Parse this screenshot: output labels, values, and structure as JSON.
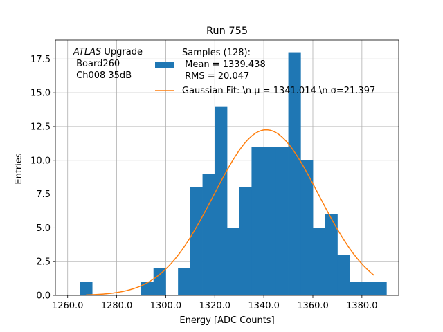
{
  "chart_data": {
    "type": "bar",
    "title": "Run 755",
    "xlabel": "Energy [ADC Counts]",
    "ylabel": "Entries",
    "xlim": [
      1255,
      1395
    ],
    "ylim": [
      0,
      18.9
    ],
    "xticks": [
      1260,
      1280,
      1300,
      1320,
      1340,
      1360,
      1380
    ],
    "xtick_labels": [
      "1260.0",
      "1280.0",
      "1300.0",
      "1320.0",
      "1340.0",
      "1360.0",
      "1380.0"
    ],
    "yticks": [
      0,
      2.5,
      5,
      7.5,
      10,
      12.5,
      15,
      17.5
    ],
    "ytick_labels": [
      "0.0",
      "2.5",
      "5.0",
      "7.5",
      "10.0",
      "12.5",
      "15.0",
      "17.5"
    ],
    "grid": true,
    "bin_edges": [
      1265,
      1270,
      1275,
      1280,
      1285,
      1290,
      1295,
      1300,
      1305,
      1310,
      1315,
      1320,
      1325,
      1330,
      1335,
      1340,
      1345,
      1350,
      1355,
      1360,
      1365,
      1370,
      1375,
      1380,
      1385,
      1390
    ],
    "bin_counts": [
      1,
      0,
      0,
      0,
      0,
      1,
      2,
      0,
      2,
      8,
      9,
      14,
      5,
      8,
      11,
      11,
      11,
      18,
      10,
      5,
      6,
      3,
      1,
      1,
      1
    ],
    "series": [
      {
        "name": "Samples (128):\n Mean = 1339.438\n RMS = 20.047",
        "type": "histogram",
        "color": "#1f77b4"
      },
      {
        "name": "Gaussian Fit: \\n $\\mu$ = 1341.014 \\n $\\sigma$=21.397",
        "type": "line",
        "color": "#ff7f0e",
        "mu": 1341.014,
        "sigma": 21.397,
        "amplitude": 12.26,
        "x_range": [
          1267.5,
          1385
        ]
      }
    ],
    "legend": {
      "placement": "top-right",
      "hist_lines": [
        "Samples (128):",
        " Mean = 1339.438",
        " RMS = 20.047"
      ],
      "fit_text": "Gaussian Fit: \\n μ = 1341.014 \\n σ=21.397"
    },
    "annotation": {
      "italic": "ATLAS",
      "rest": " Upgrade",
      "lines": [
        " Board260",
        " Ch008 35dB"
      ]
    }
  }
}
